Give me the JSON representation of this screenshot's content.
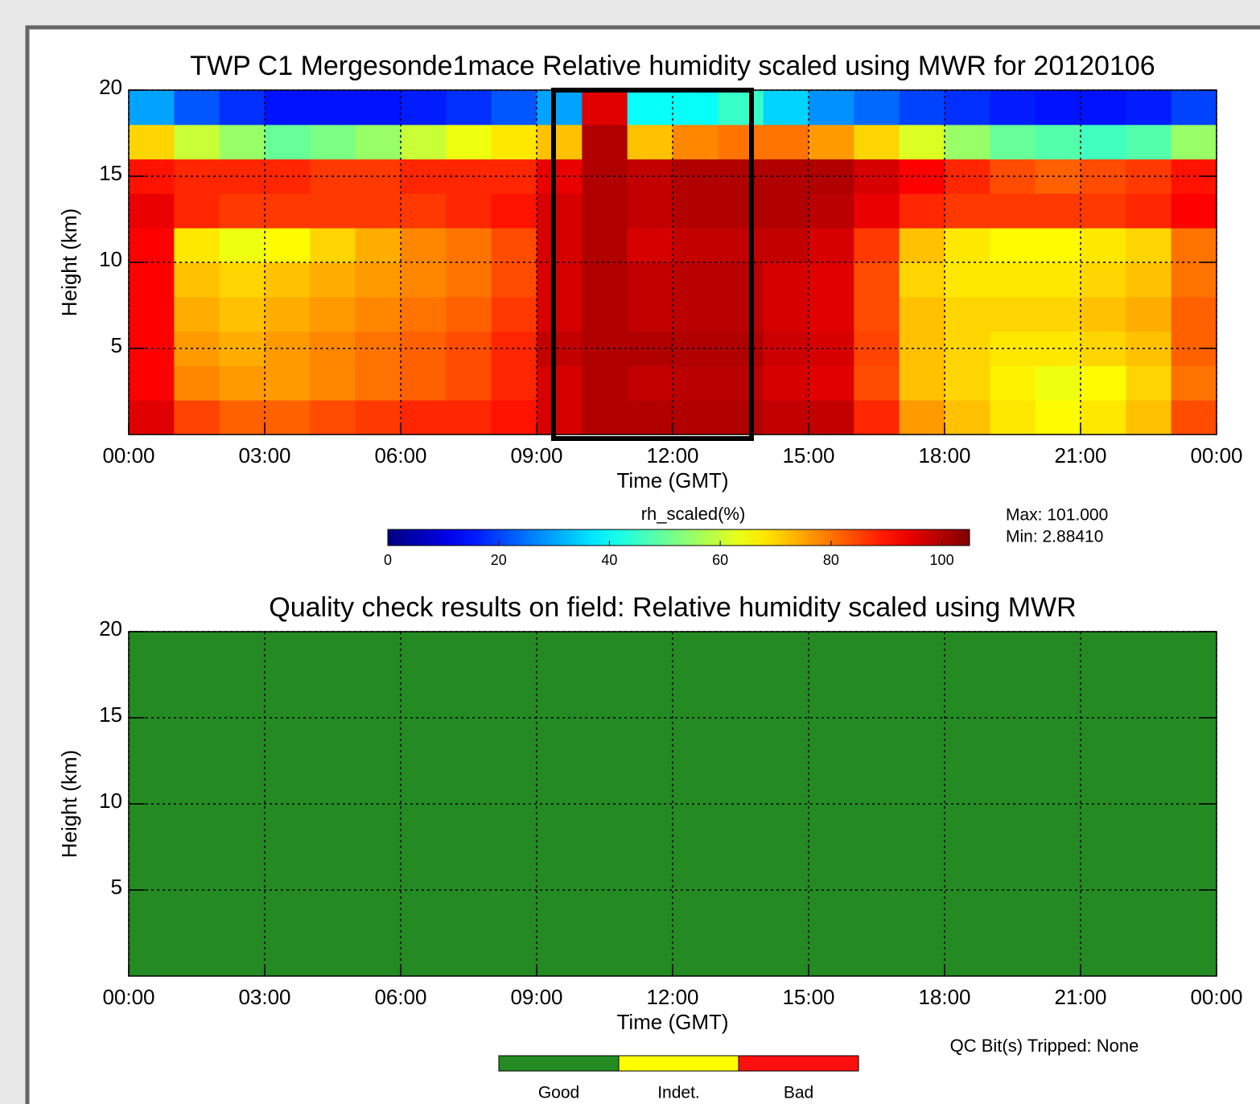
{
  "chart_data": [
    {
      "type": "heatmap",
      "title": "TWP C1 Mergesonde1mace Relative humidity scaled using MWR for 20120106",
      "x_label": "Time (GMT)",
      "y_label": "Height (km)",
      "xlim": [
        0,
        24
      ],
      "ylim": [
        0,
        20
      ],
      "xticks": [
        {
          "value": 0,
          "label": "00:00"
        },
        {
          "value": 3,
          "label": "03:00"
        },
        {
          "value": 6,
          "label": "06:00"
        },
        {
          "value": 9,
          "label": "09:00"
        },
        {
          "value": 12,
          "label": "12:00"
        },
        {
          "value": 15,
          "label": "15:00"
        },
        {
          "value": 18,
          "label": "18:00"
        },
        {
          "value": 21,
          "label": "21:00"
        },
        {
          "value": 24,
          "label": "00:00"
        }
      ],
      "yticks": [
        5,
        10,
        15,
        20
      ],
      "grid": true,
      "xbins": [
        0,
        1,
        2,
        3,
        4,
        5,
        6,
        7,
        8,
        9,
        10,
        11,
        12,
        13,
        14,
        15,
        16,
        17,
        18,
        19,
        20,
        21,
        22,
        23,
        24
      ],
      "ybins": [
        0,
        2,
        4,
        6,
        8,
        10,
        12,
        14,
        16,
        18,
        20
      ],
      "z": [
        [
          95,
          85,
          82,
          82,
          84,
          86,
          88,
          88,
          90,
          96,
          100,
          100,
          100,
          100,
          98,
          98,
          88,
          76,
          72,
          68,
          66,
          68,
          72,
          84
        ],
        [
          92,
          78,
          76,
          76,
          78,
          80,
          82,
          84,
          88,
          96,
          100,
          98,
          99,
          99,
          96,
          95,
          84,
          72,
          70,
          67,
          64,
          66,
          70,
          80
        ],
        [
          92,
          76,
          74,
          76,
          78,
          80,
          82,
          84,
          88,
          98,
          100,
          100,
          100,
          100,
          97,
          96,
          85,
          72,
          70,
          68,
          68,
          70,
          72,
          82
        ],
        [
          92,
          74,
          72,
          74,
          76,
          78,
          80,
          82,
          86,
          96,
          100,
          98,
          99,
          99,
          96,
          95,
          84,
          72,
          70,
          70,
          70,
          72,
          74,
          82
        ],
        [
          92,
          72,
          70,
          72,
          74,
          76,
          78,
          80,
          84,
          96,
          100,
          98,
          99,
          99,
          96,
          95,
          84,
          70,
          68,
          68,
          68,
          70,
          72,
          80
        ],
        [
          92,
          68,
          64,
          66,
          70,
          74,
          78,
          80,
          84,
          96,
          100,
          96,
          98,
          98,
          98,
          96,
          86,
          72,
          68,
          66,
          66,
          68,
          70,
          80
        ],
        [
          94,
          88,
          86,
          86,
          86,
          86,
          86,
          88,
          90,
          96,
          100,
          98,
          100,
          100,
          100,
          99,
          94,
          88,
          86,
          86,
          86,
          86,
          88,
          92
        ],
        [
          90,
          88,
          88,
          88,
          86,
          86,
          88,
          88,
          88,
          94,
          100,
          98,
          100,
          100,
          100,
          100,
          96,
          92,
          88,
          84,
          82,
          84,
          86,
          90
        ],
        [
          70,
          60,
          55,
          50,
          52,
          55,
          60,
          64,
          68,
          72,
          100,
          72,
          78,
          80,
          80,
          76,
          70,
          62,
          55,
          50,
          48,
          46,
          48,
          55
        ],
        [
          30,
          22,
          18,
          15,
          15,
          15,
          16,
          18,
          22,
          30,
          95,
          40,
          40,
          45,
          35,
          28,
          24,
          20,
          18,
          16,
          15,
          15,
          16,
          20
        ]
      ],
      "colorbar_label": "rh_scaled(%)",
      "clim": [
        0,
        105
      ],
      "cticks": [
        0,
        20,
        40,
        60,
        80,
        100
      ],
      "stats": [
        "Max: 101.000",
        "Min: 2.88410"
      ]
    },
    {
      "type": "qc",
      "title": "Quality check results on field: Relative humidity scaled using MWR",
      "x_label": "Time (GMT)",
      "y_label": "Height (km)",
      "xlim": [
        0,
        24
      ],
      "ylim": [
        0,
        20
      ],
      "xticks": [
        {
          "value": 0,
          "label": "00:00"
        },
        {
          "value": 3,
          "label": "03:00"
        },
        {
          "value": 6,
          "label": "06:00"
        },
        {
          "value": 9,
          "label": "09:00"
        },
        {
          "value": 12,
          "label": "12:00"
        },
        {
          "value": 15,
          "label": "15:00"
        },
        {
          "value": 18,
          "label": "18:00"
        },
        {
          "value": 21,
          "label": "21:00"
        },
        {
          "value": 24,
          "label": "00:00"
        }
      ],
      "yticks": [
        5,
        10,
        15,
        20
      ],
      "grid": true,
      "xbins": [
        0,
        24
      ],
      "ybins": [
        0,
        20
      ],
      "z": [
        [
          0
        ]
      ],
      "legend": [
        {
          "name": "Good",
          "color": "#238b22"
        },
        {
          "name": "Indet.",
          "color": "#ffff00"
        },
        {
          "name": "Bad",
          "color": "#ff1010"
        }
      ],
      "note": "QC Bit(s) Tripped: None"
    }
  ]
}
